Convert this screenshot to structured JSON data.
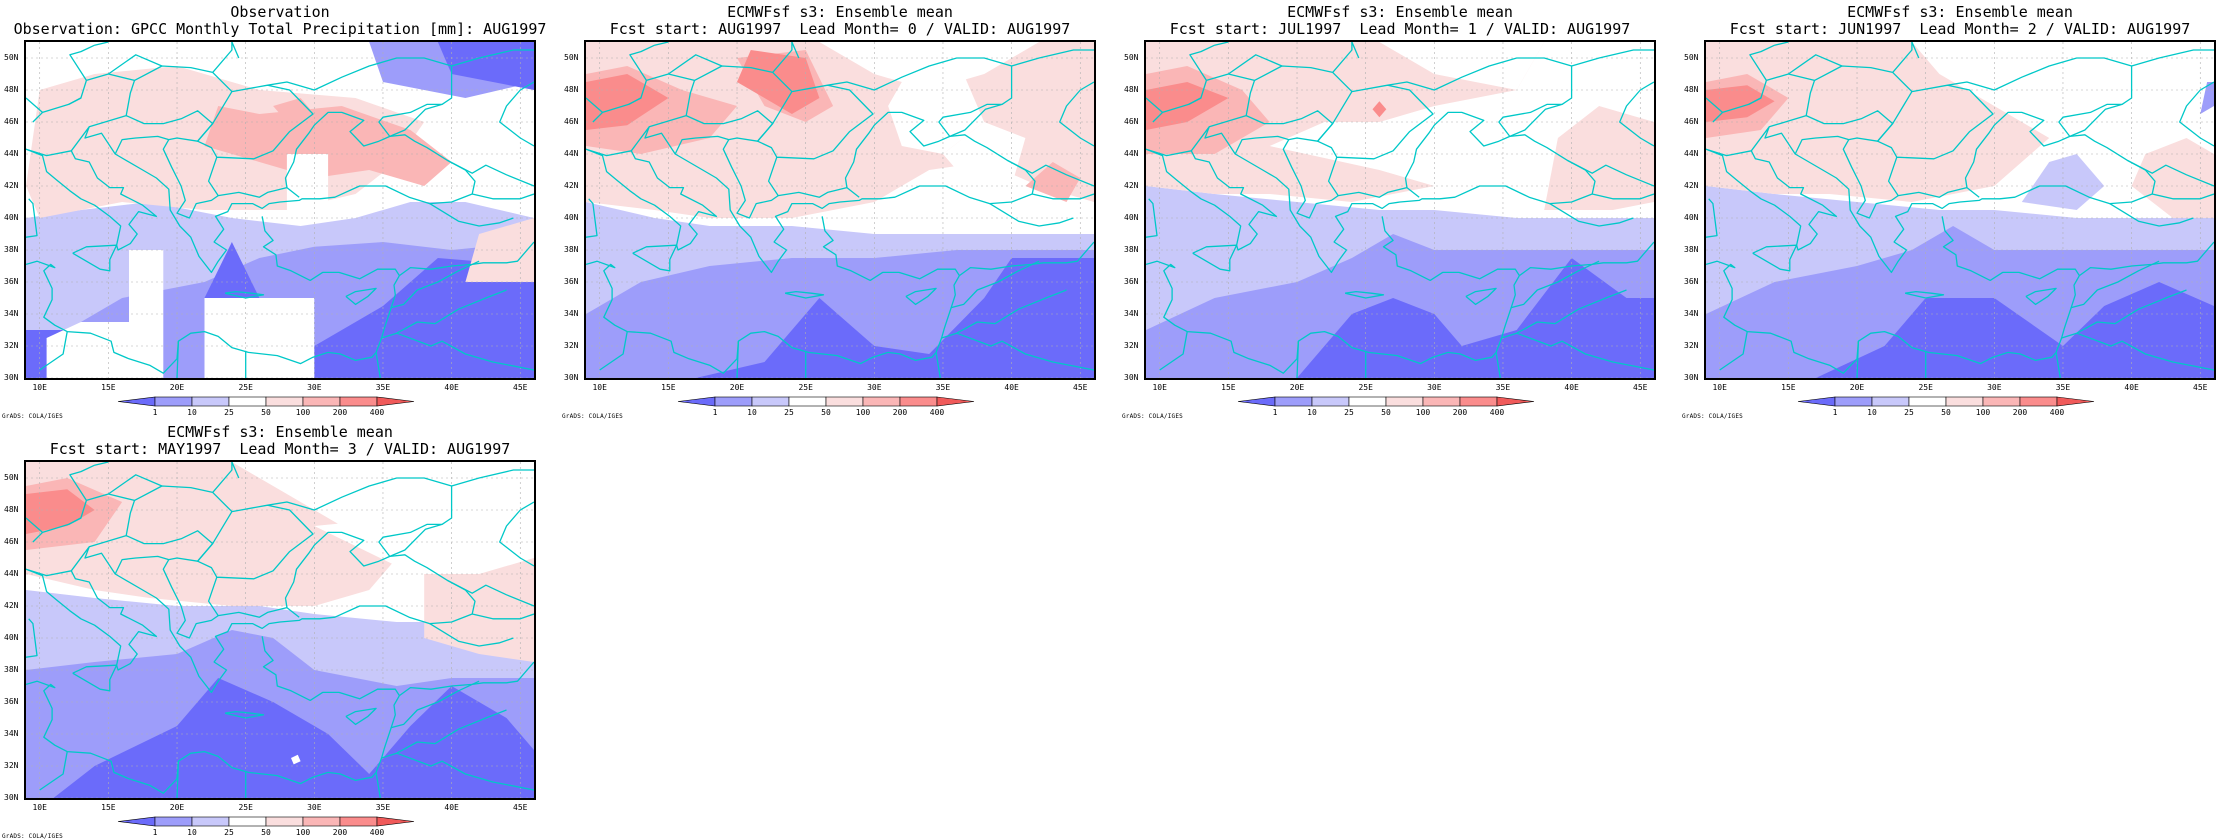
{
  "panels": [
    {
      "id": "obs",
      "title1": "Observation",
      "title2": "Observation: GPCC Monthly Total Precipitation [mm]: AUG1997"
    },
    {
      "id": "lead0",
      "title1": "ECMWFsf s3: Ensemble mean",
      "title2": "Fcst start: AUG1997  Lead Month= 0 / VALID: AUG1997"
    },
    {
      "id": "lead1",
      "title1": "ECMWFsf s3: Ensemble mean",
      "title2": "Fcst start: JUL1997  Lead Month= 1 / VALID: AUG1997"
    },
    {
      "id": "lead2",
      "title1": "ECMWFsf s3: Ensemble mean",
      "title2": "Fcst start: JUN1997  Lead Month= 2 / VALID: AUG1997"
    },
    {
      "id": "lead3",
      "title1": "ECMWFsf s3: Ensemble mean",
      "title2": "Fcst start: MAY1997  Lead Month= 3 / VALID: AUG1997"
    }
  ],
  "axes": {
    "lon_ticks": [
      "10E",
      "15E",
      "20E",
      "25E",
      "30E",
      "35E",
      "40E",
      "45E"
    ],
    "lat_ticks": [
      "50N",
      "48N",
      "46N",
      "44N",
      "42N",
      "40N",
      "38N",
      "36N",
      "34N",
      "32N",
      "30N"
    ],
    "lon_range": [
      9,
      46
    ],
    "lat_range": [
      30,
      51
    ]
  },
  "legend": {
    "values": [
      "1",
      "10",
      "25",
      "50",
      "100",
      "200",
      "400"
    ],
    "colors": [
      "#6b6bfa",
      "#9d9dfa",
      "#c8c8fa",
      "#ffffff",
      "#fadede",
      "#fab6b6",
      "#fa8c8c",
      "#f05a5a"
    ]
  },
  "credit": "GrADS: COLA/IGES",
  "colors": {
    "coast": "#00c8c8",
    "grid": "#b0b0b0"
  }
}
